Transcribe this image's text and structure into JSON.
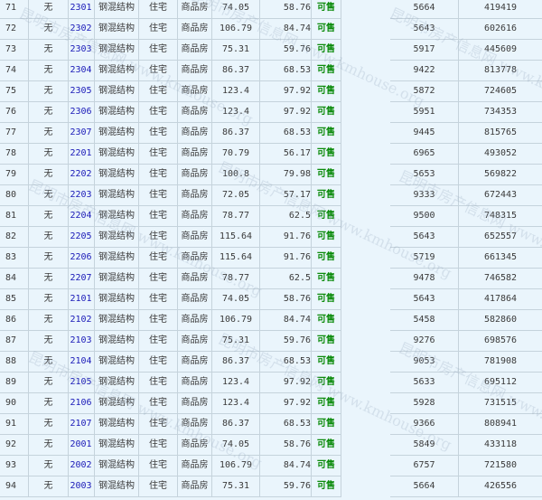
{
  "watermark": "昆明市房产信息网 www.kmhouse.org",
  "colors": {
    "background": "#eaf5fc",
    "room_link": "#1a1ab8",
    "status": "#0a8a0a",
    "border": "#c5d3dc"
  },
  "rows": [
    {
      "no": "71",
      "mark": "无",
      "room": "2301",
      "structure": "钢混结构",
      "use": "住宅",
      "type": "商品房",
      "area": "74.05",
      "inner_area": "58.76",
      "status": "可售",
      "price": "5664",
      "total": "419419"
    },
    {
      "no": "72",
      "mark": "无",
      "room": "2302",
      "structure": "钢混结构",
      "use": "住宅",
      "type": "商品房",
      "area": "106.79",
      "inner_area": "84.74",
      "status": "可售",
      "price": "5643",
      "total": "602616"
    },
    {
      "no": "73",
      "mark": "无",
      "room": "2303",
      "structure": "钢混结构",
      "use": "住宅",
      "type": "商品房",
      "area": "75.31",
      "inner_area": "59.76",
      "status": "可售",
      "price": "5917",
      "total": "445609"
    },
    {
      "no": "74",
      "mark": "无",
      "room": "2304",
      "structure": "钢混结构",
      "use": "住宅",
      "type": "商品房",
      "area": "86.37",
      "inner_area": "68.53",
      "status": "可售",
      "price": "9422",
      "total": "813778"
    },
    {
      "no": "75",
      "mark": "无",
      "room": "2305",
      "structure": "钢混结构",
      "use": "住宅",
      "type": "商品房",
      "area": "123.4",
      "inner_area": "97.92",
      "status": "可售",
      "price": "5872",
      "total": "724605"
    },
    {
      "no": "76",
      "mark": "无",
      "room": "2306",
      "structure": "钢混结构",
      "use": "住宅",
      "type": "商品房",
      "area": "123.4",
      "inner_area": "97.92",
      "status": "可售",
      "price": "5951",
      "total": "734353"
    },
    {
      "no": "77",
      "mark": "无",
      "room": "2307",
      "structure": "钢混结构",
      "use": "住宅",
      "type": "商品房",
      "area": "86.37",
      "inner_area": "68.53",
      "status": "可售",
      "price": "9445",
      "total": "815765"
    },
    {
      "no": "78",
      "mark": "无",
      "room": "2201",
      "structure": "钢混结构",
      "use": "住宅",
      "type": "商品房",
      "area": "70.79",
      "inner_area": "56.17",
      "status": "可售",
      "price": "6965",
      "total": "493052"
    },
    {
      "no": "79",
      "mark": "无",
      "room": "2202",
      "structure": "钢混结构",
      "use": "住宅",
      "type": "商品房",
      "area": "100.8",
      "inner_area": "79.98",
      "status": "可售",
      "price": "5653",
      "total": "569822"
    },
    {
      "no": "80",
      "mark": "无",
      "room": "2203",
      "structure": "钢混结构",
      "use": "住宅",
      "type": "商品房",
      "area": "72.05",
      "inner_area": "57.17",
      "status": "可售",
      "price": "9333",
      "total": "672443"
    },
    {
      "no": "81",
      "mark": "无",
      "room": "2204",
      "structure": "钢混结构",
      "use": "住宅",
      "type": "商品房",
      "area": "78.77",
      "inner_area": "62.5",
      "status": "可售",
      "price": "9500",
      "total": "748315"
    },
    {
      "no": "82",
      "mark": "无",
      "room": "2205",
      "structure": "钢混结构",
      "use": "住宅",
      "type": "商品房",
      "area": "115.64",
      "inner_area": "91.76",
      "status": "可售",
      "price": "5643",
      "total": "652557"
    },
    {
      "no": "83",
      "mark": "无",
      "room": "2206",
      "structure": "钢混结构",
      "use": "住宅",
      "type": "商品房",
      "area": "115.64",
      "inner_area": "91.76",
      "status": "可售",
      "price": "5719",
      "total": "661345"
    },
    {
      "no": "84",
      "mark": "无",
      "room": "2207",
      "structure": "钢混结构",
      "use": "住宅",
      "type": "商品房",
      "area": "78.77",
      "inner_area": "62.5",
      "status": "可售",
      "price": "9478",
      "total": "746582"
    },
    {
      "no": "85",
      "mark": "无",
      "room": "2101",
      "structure": "钢混结构",
      "use": "住宅",
      "type": "商品房",
      "area": "74.05",
      "inner_area": "58.76",
      "status": "可售",
      "price": "5643",
      "total": "417864"
    },
    {
      "no": "86",
      "mark": "无",
      "room": "2102",
      "structure": "钢混结构",
      "use": "住宅",
      "type": "商品房",
      "area": "106.79",
      "inner_area": "84.74",
      "status": "可售",
      "price": "5458",
      "total": "582860"
    },
    {
      "no": "87",
      "mark": "无",
      "room": "2103",
      "structure": "钢混结构",
      "use": "住宅",
      "type": "商品房",
      "area": "75.31",
      "inner_area": "59.76",
      "status": "可售",
      "price": "9276",
      "total": "698576"
    },
    {
      "no": "88",
      "mark": "无",
      "room": "2104",
      "structure": "钢混结构",
      "use": "住宅",
      "type": "商品房",
      "area": "86.37",
      "inner_area": "68.53",
      "status": "可售",
      "price": "9053",
      "total": "781908"
    },
    {
      "no": "89",
      "mark": "无",
      "room": "2105",
      "structure": "钢混结构",
      "use": "住宅",
      "type": "商品房",
      "area": "123.4",
      "inner_area": "97.92",
      "status": "可售",
      "price": "5633",
      "total": "695112"
    },
    {
      "no": "90",
      "mark": "无",
      "room": "2106",
      "structure": "钢混结构",
      "use": "住宅",
      "type": "商品房",
      "area": "123.4",
      "inner_area": "97.92",
      "status": "可售",
      "price": "5928",
      "total": "731515"
    },
    {
      "no": "91",
      "mark": "无",
      "room": "2107",
      "structure": "钢混结构",
      "use": "住宅",
      "type": "商品房",
      "area": "86.37",
      "inner_area": "68.53",
      "status": "可售",
      "price": "9366",
      "total": "808941"
    },
    {
      "no": "92",
      "mark": "无",
      "room": "2001",
      "structure": "钢混结构",
      "use": "住宅",
      "type": "商品房",
      "area": "74.05",
      "inner_area": "58.76",
      "status": "可售",
      "price": "5849",
      "total": "433118"
    },
    {
      "no": "93",
      "mark": "无",
      "room": "2002",
      "structure": "钢混结构",
      "use": "住宅",
      "type": "商品房",
      "area": "106.79",
      "inner_area": "84.74",
      "status": "可售",
      "price": "6757",
      "total": "721580"
    },
    {
      "no": "94",
      "mark": "无",
      "room": "2003",
      "structure": "钢混结构",
      "use": "住宅",
      "type": "商品房",
      "area": "75.31",
      "inner_area": "59.76",
      "status": "可售",
      "price": "5664",
      "total": "426556"
    }
  ]
}
